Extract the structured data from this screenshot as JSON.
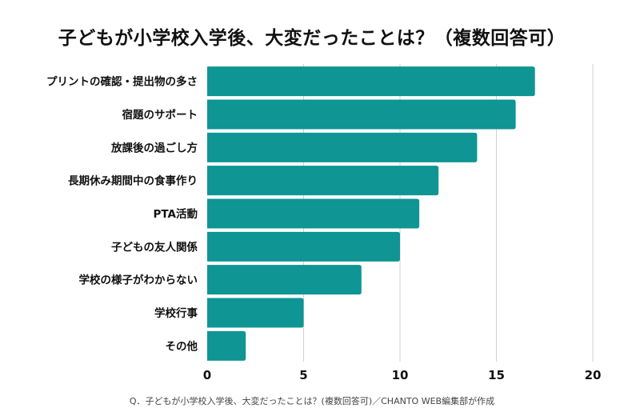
{
  "chart_data": {
    "type": "bar",
    "orientation": "horizontal",
    "title": "子どもが小学校入学後、大変だったことは？（複数回答可）",
    "categories": [
      "プリントの確認・提出物の多さ",
      "宿題のサポート",
      "放課後の過ごし方",
      "長期休み期間中の食事作り",
      "PTA活動",
      "子どもの友人関係",
      "学校の様子がわからない",
      "学校行事",
      "その他"
    ],
    "values": [
      17,
      16,
      14,
      12,
      11,
      10,
      8,
      5,
      2
    ],
    "xlim": [
      0,
      20
    ],
    "xticks": [
      0,
      5,
      10,
      15,
      20
    ],
    "grid": true,
    "bar_color": "#0e9594",
    "footnote": "Q．子どもが小学校入学後、大変だったことは？(複数回答可)／CHANTO WEB編集部が作成"
  }
}
